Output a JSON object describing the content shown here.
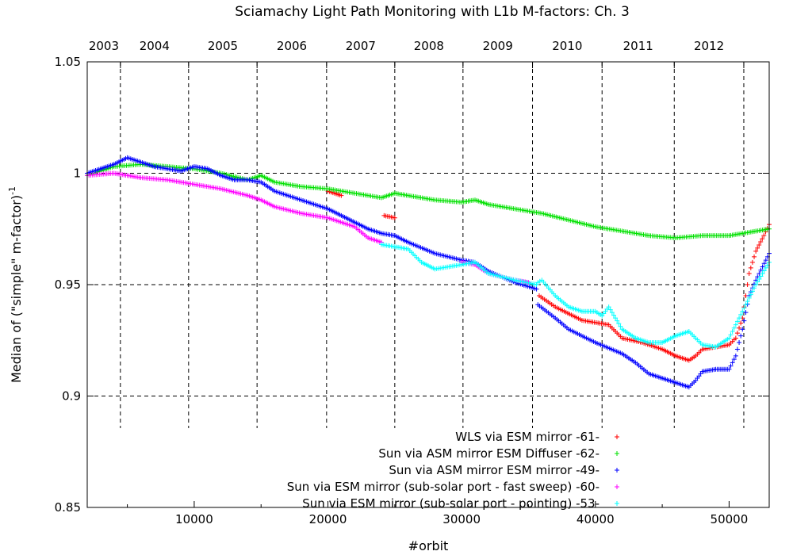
{
  "chart_data": {
    "type": "scatter",
    "title": "Sciamachy Light Path Monitoring with L1b M-factors: Ch. 3",
    "xlabel": "#orbit",
    "ylabel": "Median of (\"simple\" m-factor)",
    "ylabel_sup": "-1",
    "xlim": [
      2000,
      53000
    ],
    "ylim": [
      0.85,
      1.05
    ],
    "x_ticks": [
      10000,
      20000,
      30000,
      40000,
      50000
    ],
    "x_tick_labels": [
      "10000",
      "20000",
      "30000",
      "40000",
      "50000"
    ],
    "y_ticks": [
      0.85,
      0.9,
      0.95,
      1.0,
      1.05
    ],
    "y_tick_labels": [
      "0.85",
      "0.9",
      "0.95",
      "1",
      "1.05"
    ],
    "top_axis": {
      "labels": [
        "2003",
        "2004",
        "2005",
        "2006",
        "2007",
        "2008",
        "2009",
        "2010",
        "2011",
        "2012"
      ],
      "year_boundaries_orbit": [
        4480,
        9580,
        14700,
        19900,
        25000,
        30100,
        35300,
        40500,
        45900,
        51100
      ]
    },
    "grid": true,
    "legend_position": "bottom-right",
    "series": [
      {
        "name": "WLS via ESM mirror -61-",
        "color": "#ff0000",
        "marker": "+",
        "segments": [
          {
            "x": [
              20000,
              21000
            ],
            "y": [
              0.992,
              0.99
            ]
          },
          {
            "x": [
              24200,
              25000
            ],
            "y": [
              0.981,
              0.98
            ]
          },
          {
            "x": [
              35800,
              37000,
              39000,
              41000,
              42000,
              43500,
              45000,
              46000,
              47000,
              47500,
              48000,
              49000,
              50000,
              50500,
              51000,
              51500,
              52000,
              52600,
              53000
            ],
            "y": [
              0.945,
              0.94,
              0.934,
              0.932,
              0.926,
              0.924,
              0.921,
              0.918,
              0.916,
              0.918,
              0.921,
              0.922,
              0.923,
              0.926,
              0.935,
              0.955,
              0.965,
              0.972,
              0.977
            ]
          }
        ]
      },
      {
        "name": "Sun via ASM mirror  ESM Diffuser -62-",
        "color": "#00e000",
        "marker": "+",
        "segments": [
          {
            "x": [
              2000,
              4000,
              6000,
              8000,
              10000,
              12000,
              14000,
              15000,
              16000,
              18000,
              20000,
              22000,
              24000,
              25000,
              26000,
              28000,
              30000,
              31000,
              32000,
              34000,
              36000,
              38000,
              40000,
              42000,
              44000,
              46000,
              48000,
              50000,
              51000,
              52000,
              53000
            ],
            "y": [
              0.999,
              1.003,
              1.004,
              1.003,
              1.002,
              1.0,
              0.997,
              0.999,
              0.996,
              0.994,
              0.993,
              0.991,
              0.989,
              0.991,
              0.99,
              0.988,
              0.987,
              0.988,
              0.986,
              0.984,
              0.982,
              0.979,
              0.976,
              0.974,
              0.972,
              0.971,
              0.972,
              0.972,
              0.973,
              0.974,
              0.975
            ]
          }
        ]
      },
      {
        "name": "Sun via ASM mirror  ESM mirror -49-",
        "color": "#0000ff",
        "marker": "+",
        "segments": [
          {
            "x": [
              2000,
              3000,
              4000,
              5000,
              6000,
              7000,
              8000,
              9000,
              10000,
              11000,
              12000,
              13000,
              14000,
              15000,
              16000,
              18000,
              20000,
              21000,
              22000,
              23000,
              24000,
              25000,
              26000,
              28000,
              30000,
              31000,
              32000,
              34000,
              35600
            ],
            "y": [
              1.0,
              1.002,
              1.004,
              1.007,
              1.005,
              1.003,
              1.002,
              1.001,
              1.003,
              1.002,
              0.999,
              0.997,
              0.997,
              0.996,
              0.992,
              0.988,
              0.984,
              0.981,
              0.978,
              0.975,
              0.973,
              0.972,
              0.969,
              0.964,
              0.961,
              0.96,
              0.956,
              0.951,
              0.948
            ]
          },
          {
            "x": [
              35700,
              37000,
              38000,
              40000,
              42000,
              43000,
              44000,
              45000,
              46000,
              46500,
              47000,
              47500,
              48000,
              49000,
              50000,
              50500,
              51000,
              51500,
              52000,
              52500,
              53000
            ],
            "y": [
              0.941,
              0.935,
              0.93,
              0.924,
              0.919,
              0.915,
              0.91,
              0.908,
              0.906,
              0.905,
              0.904,
              0.907,
              0.911,
              0.912,
              0.912,
              0.918,
              0.93,
              0.945,
              0.952,
              0.958,
              0.964
            ]
          }
        ]
      },
      {
        "name": "Sun via ESM mirror (sub-solar port - fast sweep) -60-",
        "color": "#ff00ff",
        "marker": "+",
        "segments": [
          {
            "x": [
              2000,
              4000,
              5000,
              6000,
              8000,
              10000,
              12000,
              14000,
              15000,
              16000,
              18000,
              20000,
              22000,
              23000,
              24000
            ],
            "y": [
              0.999,
              1.0,
              0.999,
              0.998,
              0.997,
              0.995,
              0.993,
              0.99,
              0.988,
              0.985,
              0.982,
              0.98,
              0.976,
              0.971,
              0.969
            ]
          },
          {
            "x": [
              30000,
              31000,
              32000,
              34000,
              35000
            ],
            "y": [
              0.96,
              0.959,
              0.955,
              0.952,
              0.951
            ]
          }
        ]
      },
      {
        "name": "Sun via ESM mirror (sub-solar port - pointing) -53-",
        "color": "#00ffff",
        "marker": "+",
        "segments": [
          {
            "x": [
              24000,
              25000,
              26000,
              27000,
              28000,
              30000,
              31000,
              32000,
              34000,
              35600
            ],
            "y": [
              0.968,
              0.967,
              0.966,
              0.96,
              0.957,
              0.959,
              0.96,
              0.955,
              0.952,
              0.95
            ]
          },
          {
            "x": [
              35700,
              36000,
              37000,
              38000,
              39000,
              40000,
              40500,
              41000,
              42000,
              43000,
              44000,
              45000,
              46000,
              47000,
              48000,
              49000,
              50000,
              51000,
              52000,
              53000
            ],
            "y": [
              0.951,
              0.952,
              0.945,
              0.94,
              0.938,
              0.938,
              0.936,
              0.94,
              0.93,
              0.926,
              0.924,
              0.924,
              0.927,
              0.929,
              0.923,
              0.922,
              0.926,
              0.938,
              0.95,
              0.96
            ]
          }
        ]
      }
    ]
  }
}
